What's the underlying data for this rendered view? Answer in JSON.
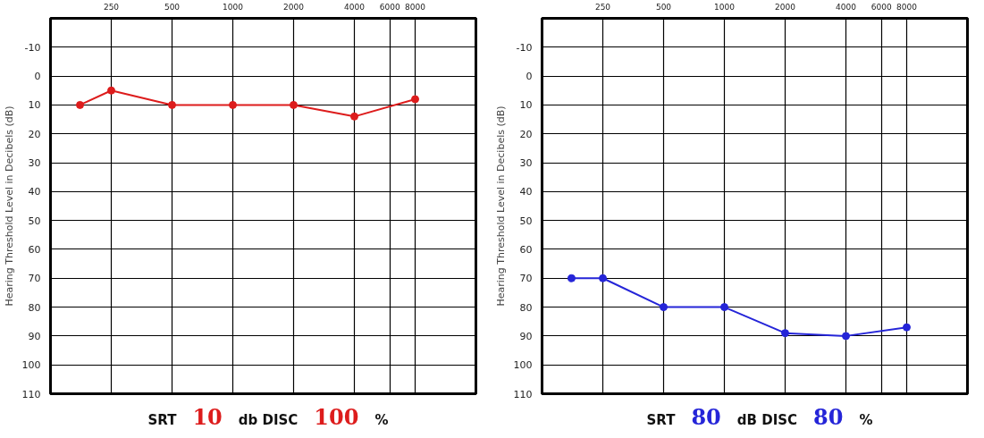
{
  "chart_data": [
    {
      "type": "line",
      "ylabel": "Hearing Threshold Level in Decibels (dB)",
      "x": [
        175,
        250,
        500,
        1000,
        2000,
        4000,
        8000
      ],
      "log": "x",
      "xlim": [
        125,
        16000
      ],
      "xticks": [
        250,
        500,
        1000,
        2000,
        4000,
        6000,
        8000
      ],
      "ylim": [
        110,
        -20
      ],
      "yticks": [
        {
          "value": -20,
          "label": null
        },
        -10,
        0,
        10,
        20,
        30,
        40,
        50,
        60,
        70,
        80,
        90,
        100,
        110
      ],
      "grid": true,
      "marker": "circle",
      "line_style": "solid",
      "series": [
        {
          "color": "#dd1c1c",
          "values": [
            10,
            5,
            10,
            10,
            10,
            14,
            8
          ]
        }
      ],
      "annotations": [
        "SRT",
        "10",
        "db DISC",
        "100",
        "%"
      ]
    },
    {
      "type": "line",
      "ylabel": "Hearing Threshold Level in Decibels (dB)",
      "x": [
        175,
        250,
        500,
        1000,
        2000,
        4000,
        8000
      ],
      "log": "x",
      "xlim": [
        125,
        16000
      ],
      "xticks": [
        250,
        500,
        1000,
        2000,
        4000,
        6000,
        8000
      ],
      "ylim": [
        110,
        -20
      ],
      "yticks": [
        {
          "value": -20,
          "label": null
        },
        -10,
        0,
        10,
        20,
        30,
        40,
        50,
        60,
        70,
        80,
        90,
        100,
        110
      ],
      "grid": true,
      "marker": "circle",
      "line_style": "solid",
      "series": [
        {
          "color": "#2525d8",
          "values": [
            70,
            70,
            80,
            80,
            89,
            90,
            87
          ]
        }
      ],
      "annotations": [
        "SRT",
        "80",
        "dB DISC",
        "80",
        "%"
      ]
    }
  ]
}
